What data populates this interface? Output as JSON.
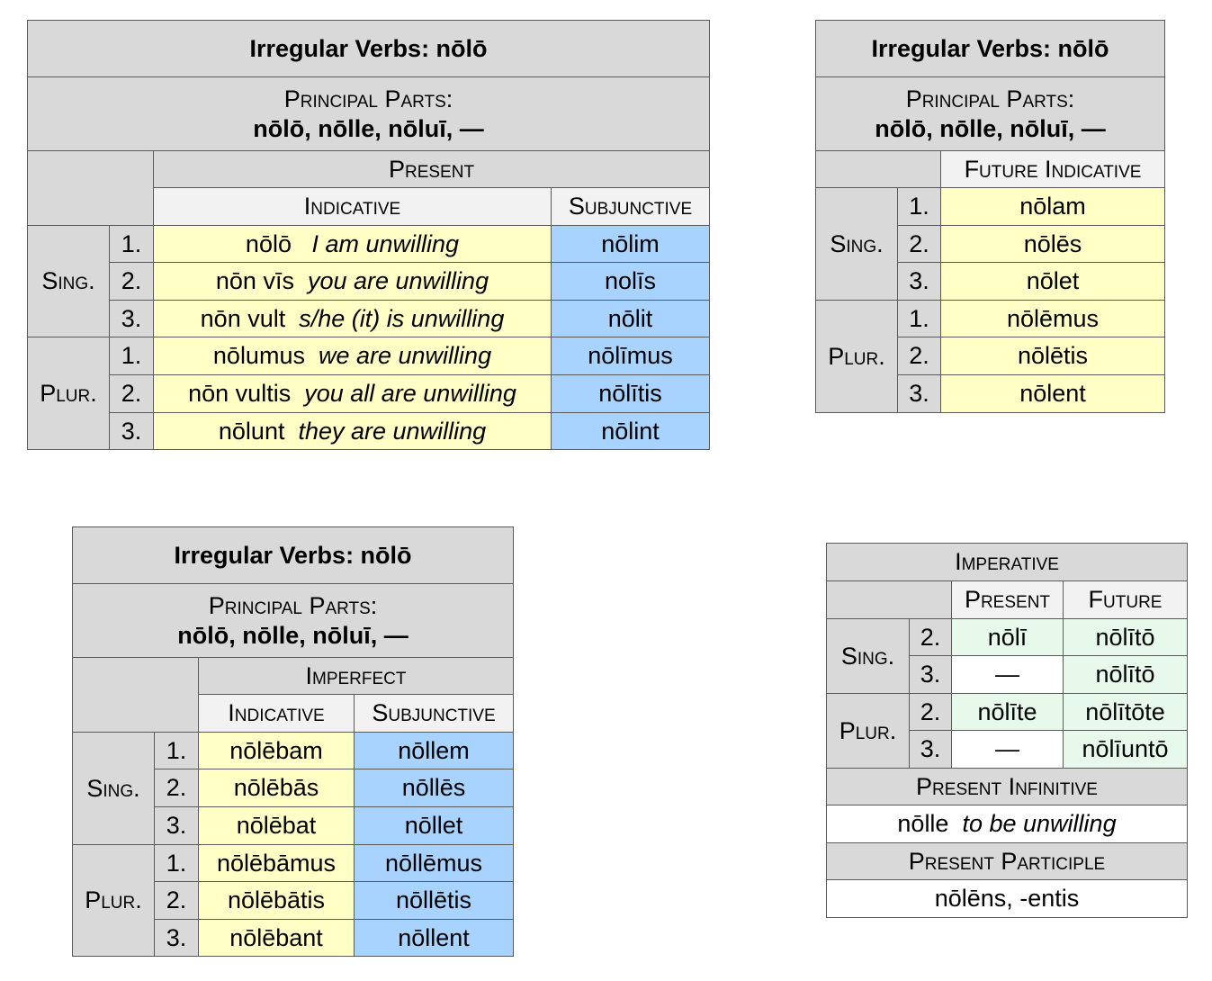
{
  "present_table": {
    "title": "Irregular Verbs:  nōlō",
    "principal_parts_label": "Principal Parts:",
    "principal_parts": "nōlō, nōlle, nōluī, —",
    "tense": "Present",
    "col_indicative": "Indicative",
    "col_subjunctive": "Subjunctive",
    "sing_label": "Sing.",
    "plur_label": "Plur.",
    "rows": [
      {
        "person": "1.",
        "latin": "nōlō",
        "eng_a": "I am unwilling",
        "eng_mid": "",
        "eng_b": "",
        "subj": "nōlim"
      },
      {
        "person": "2.",
        "latin": "nōn vīs",
        "eng_a": "you are unwilling",
        "eng_mid": "",
        "eng_b": "",
        "subj": "nolīs"
      },
      {
        "person": "3.",
        "latin": "nōn vult",
        "eng_a": "s/he (",
        "eng_mid": "it",
        "eng_b": ") is unwilling",
        "subj": "nōlit"
      },
      {
        "person": "1.",
        "latin": "nōlumus",
        "eng_a": "we are unwilling",
        "eng_mid": "",
        "eng_b": "",
        "subj": "nōlīmus"
      },
      {
        "person": "2.",
        "latin": "nōn vultis",
        "eng_a": "you all are unwilling",
        "eng_mid": "",
        "eng_b": "",
        "subj": "nōlītis"
      },
      {
        "person": "3.",
        "latin": "nōlunt",
        "eng_a": "they are unwilling",
        "eng_mid": "",
        "eng_b": "",
        "subj": "nōlint"
      }
    ]
  },
  "future_table": {
    "title": "Irregular Verbs:  nōlō",
    "principal_parts_label": "Principal Parts:",
    "principal_parts": "nōlō, nōlle, nōluī, —",
    "header": "Future Indicative",
    "sing_label": "Sing.",
    "plur_label": "Plur.",
    "rows": [
      {
        "person": "1.",
        "form": "nōlam"
      },
      {
        "person": "2.",
        "form": "nōlēs"
      },
      {
        "person": "3.",
        "form": "nōlet"
      },
      {
        "person": "1.",
        "form": "nōlēmus"
      },
      {
        "person": "2.",
        "form": "nōlētis"
      },
      {
        "person": "3.",
        "form": "nōlent"
      }
    ]
  },
  "imperfect_table": {
    "title": "Irregular Verbs:  nōlō",
    "principal_parts_label": "Principal Parts:",
    "principal_parts": "nōlō, nōlle, nōluī, —",
    "tense": "Imperfect",
    "col_indicative": "Indicative",
    "col_subjunctive": "Subjunctive",
    "sing_label": "Sing.",
    "plur_label": "Plur.",
    "rows": [
      {
        "person": "1.",
        "ind": "nōlēbam",
        "subj": "nōllem"
      },
      {
        "person": "2.",
        "ind": "nōlēbās",
        "subj": "nōllēs"
      },
      {
        "person": "3.",
        "ind": "nōlēbat",
        "subj": "nōllet"
      },
      {
        "person": "1.",
        "ind": "nōlēbāmus",
        "subj": "nōllēmus"
      },
      {
        "person": "2.",
        "ind": "nōlēbātis",
        "subj": "nōllētis"
      },
      {
        "person": "3.",
        "ind": "nōlēbant",
        "subj": "nōllent"
      }
    ]
  },
  "imperative_table": {
    "title": "Imperative",
    "col_present": "Present",
    "col_future": "Future",
    "sing_label": "Sing.",
    "plur_label": "Plur.",
    "rows": [
      {
        "person": "2.",
        "present": "nōlī",
        "future": "nōlītō"
      },
      {
        "person": "3.",
        "present": "—",
        "future": "nōlītō"
      },
      {
        "person": "2.",
        "present": "nōlīte",
        "future": "nōlītōte"
      },
      {
        "person": "3.",
        "present": "—",
        "future": "nōlīuntō"
      }
    ],
    "infinitive_label": "Present Infinitive",
    "infinitive_latin": "nōlle",
    "infinitive_english": "to be unwilling",
    "participle_label": "Present Participle",
    "participle": "nōlēns, -entis"
  }
}
